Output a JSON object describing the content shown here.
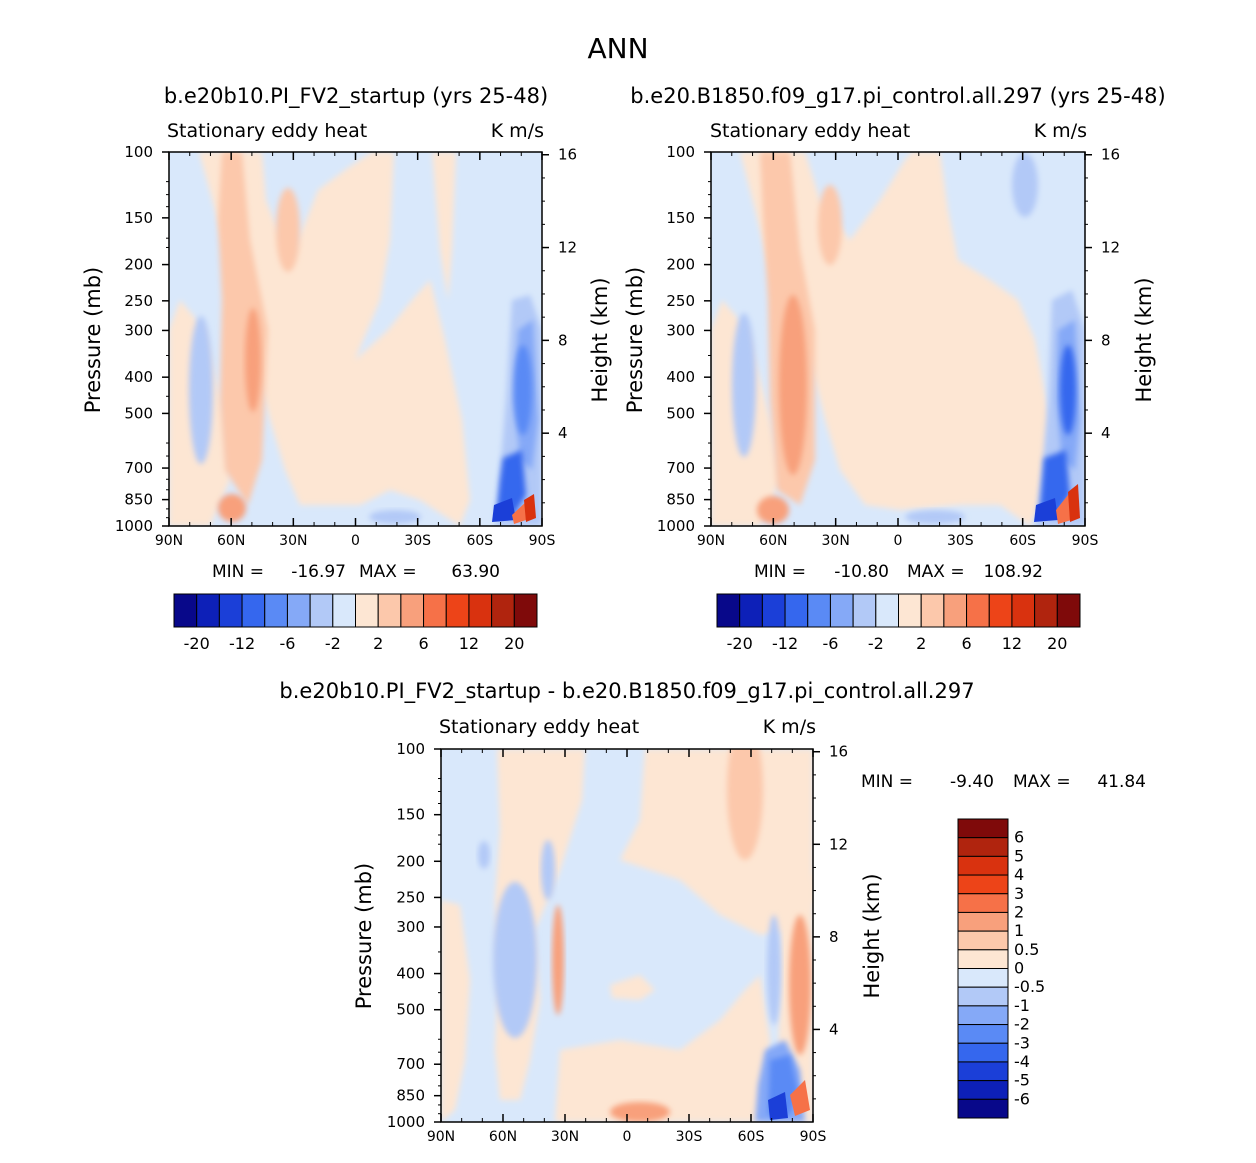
{
  "figure_title": "ANN",
  "chart_data": [
    {
      "type": "contour",
      "title": "b.e20b10.PI_FV2_startup (yrs 25-48)",
      "subtitle_left": "Stationary eddy heat",
      "subtitle_right": "K m/s",
      "xlabel": "",
      "ylabel": "Pressure (mb)",
      "ylabel_right": "Height (km)",
      "x_tick_labels": [
        "90N",
        "60N",
        "30N",
        "0",
        "30S",
        "60S",
        "90S"
      ],
      "y_ticks": [
        100,
        150,
        200,
        250,
        300,
        400,
        500,
        700,
        850,
        1000
      ],
      "y_right_ticks": [
        16,
        12,
        8,
        4
      ],
      "min_label": "MIN =",
      "min_value": "-16.97",
      "max_label": "MAX =",
      "max_value": "63.90",
      "colorbar_labels": [
        "-20",
        "-12",
        "-6",
        "-2",
        "2",
        "6",
        "12",
        "20"
      ]
    },
    {
      "type": "contour",
      "title": "b.e20.B1850.f09_g17.pi_control.all.297 (yrs 25-48)",
      "subtitle_left": "Stationary eddy heat",
      "subtitle_right": "K m/s",
      "xlabel": "",
      "ylabel": "Pressure (mb)",
      "ylabel_right": "Height (km)",
      "x_tick_labels": [
        "90N",
        "60N",
        "30N",
        "0",
        "30S",
        "60S",
        "90S"
      ],
      "y_ticks": [
        100,
        150,
        200,
        250,
        300,
        400,
        500,
        700,
        850,
        1000
      ],
      "y_right_ticks": [
        16,
        12,
        8,
        4
      ],
      "min_label": "MIN =",
      "min_value": "-10.80",
      "max_label": "MAX =",
      "max_value": "108.92",
      "colorbar_labels": [
        "-20",
        "-12",
        "-6",
        "-2",
        "2",
        "6",
        "12",
        "20"
      ]
    },
    {
      "type": "contour",
      "title": "b.e20b10.PI_FV2_startup - b.e20.B1850.f09_g17.pi_control.all.297",
      "subtitle_left": "Stationary eddy heat",
      "subtitle_right": "K m/s",
      "xlabel": "",
      "ylabel": "Pressure (mb)",
      "ylabel_right": "Height (km)",
      "x_tick_labels": [
        "90N",
        "60N",
        "30N",
        "0",
        "30S",
        "60S",
        "90S"
      ],
      "y_ticks": [
        100,
        150,
        200,
        250,
        300,
        400,
        500,
        700,
        850,
        1000
      ],
      "y_right_ticks": [
        16,
        12,
        8,
        4
      ],
      "min_label": "MIN =",
      "min_value": "-9.40",
      "max_label": "MAX =",
      "max_value": "41.84",
      "colorbar_labels": [
        "6",
        "5",
        "4",
        "3",
        "2",
        "1",
        "0.5",
        "0",
        "-0.5",
        "-1",
        "-2",
        "-3",
        "-4",
        "-5",
        "-6"
      ]
    }
  ],
  "palette": {
    "levels_main": [
      "#08088a",
      "#0d20b8",
      "#1b3fd8",
      "#3567ee",
      "#5a8af5",
      "#85a9f7",
      "#b2c9f7",
      "#d9e8fb",
      "#fde6d3",
      "#fcc8ab",
      "#f8a07c",
      "#f67148",
      "#ed4418",
      "#d9320f",
      "#b0240e",
      "#7f0a0a"
    ]
  }
}
